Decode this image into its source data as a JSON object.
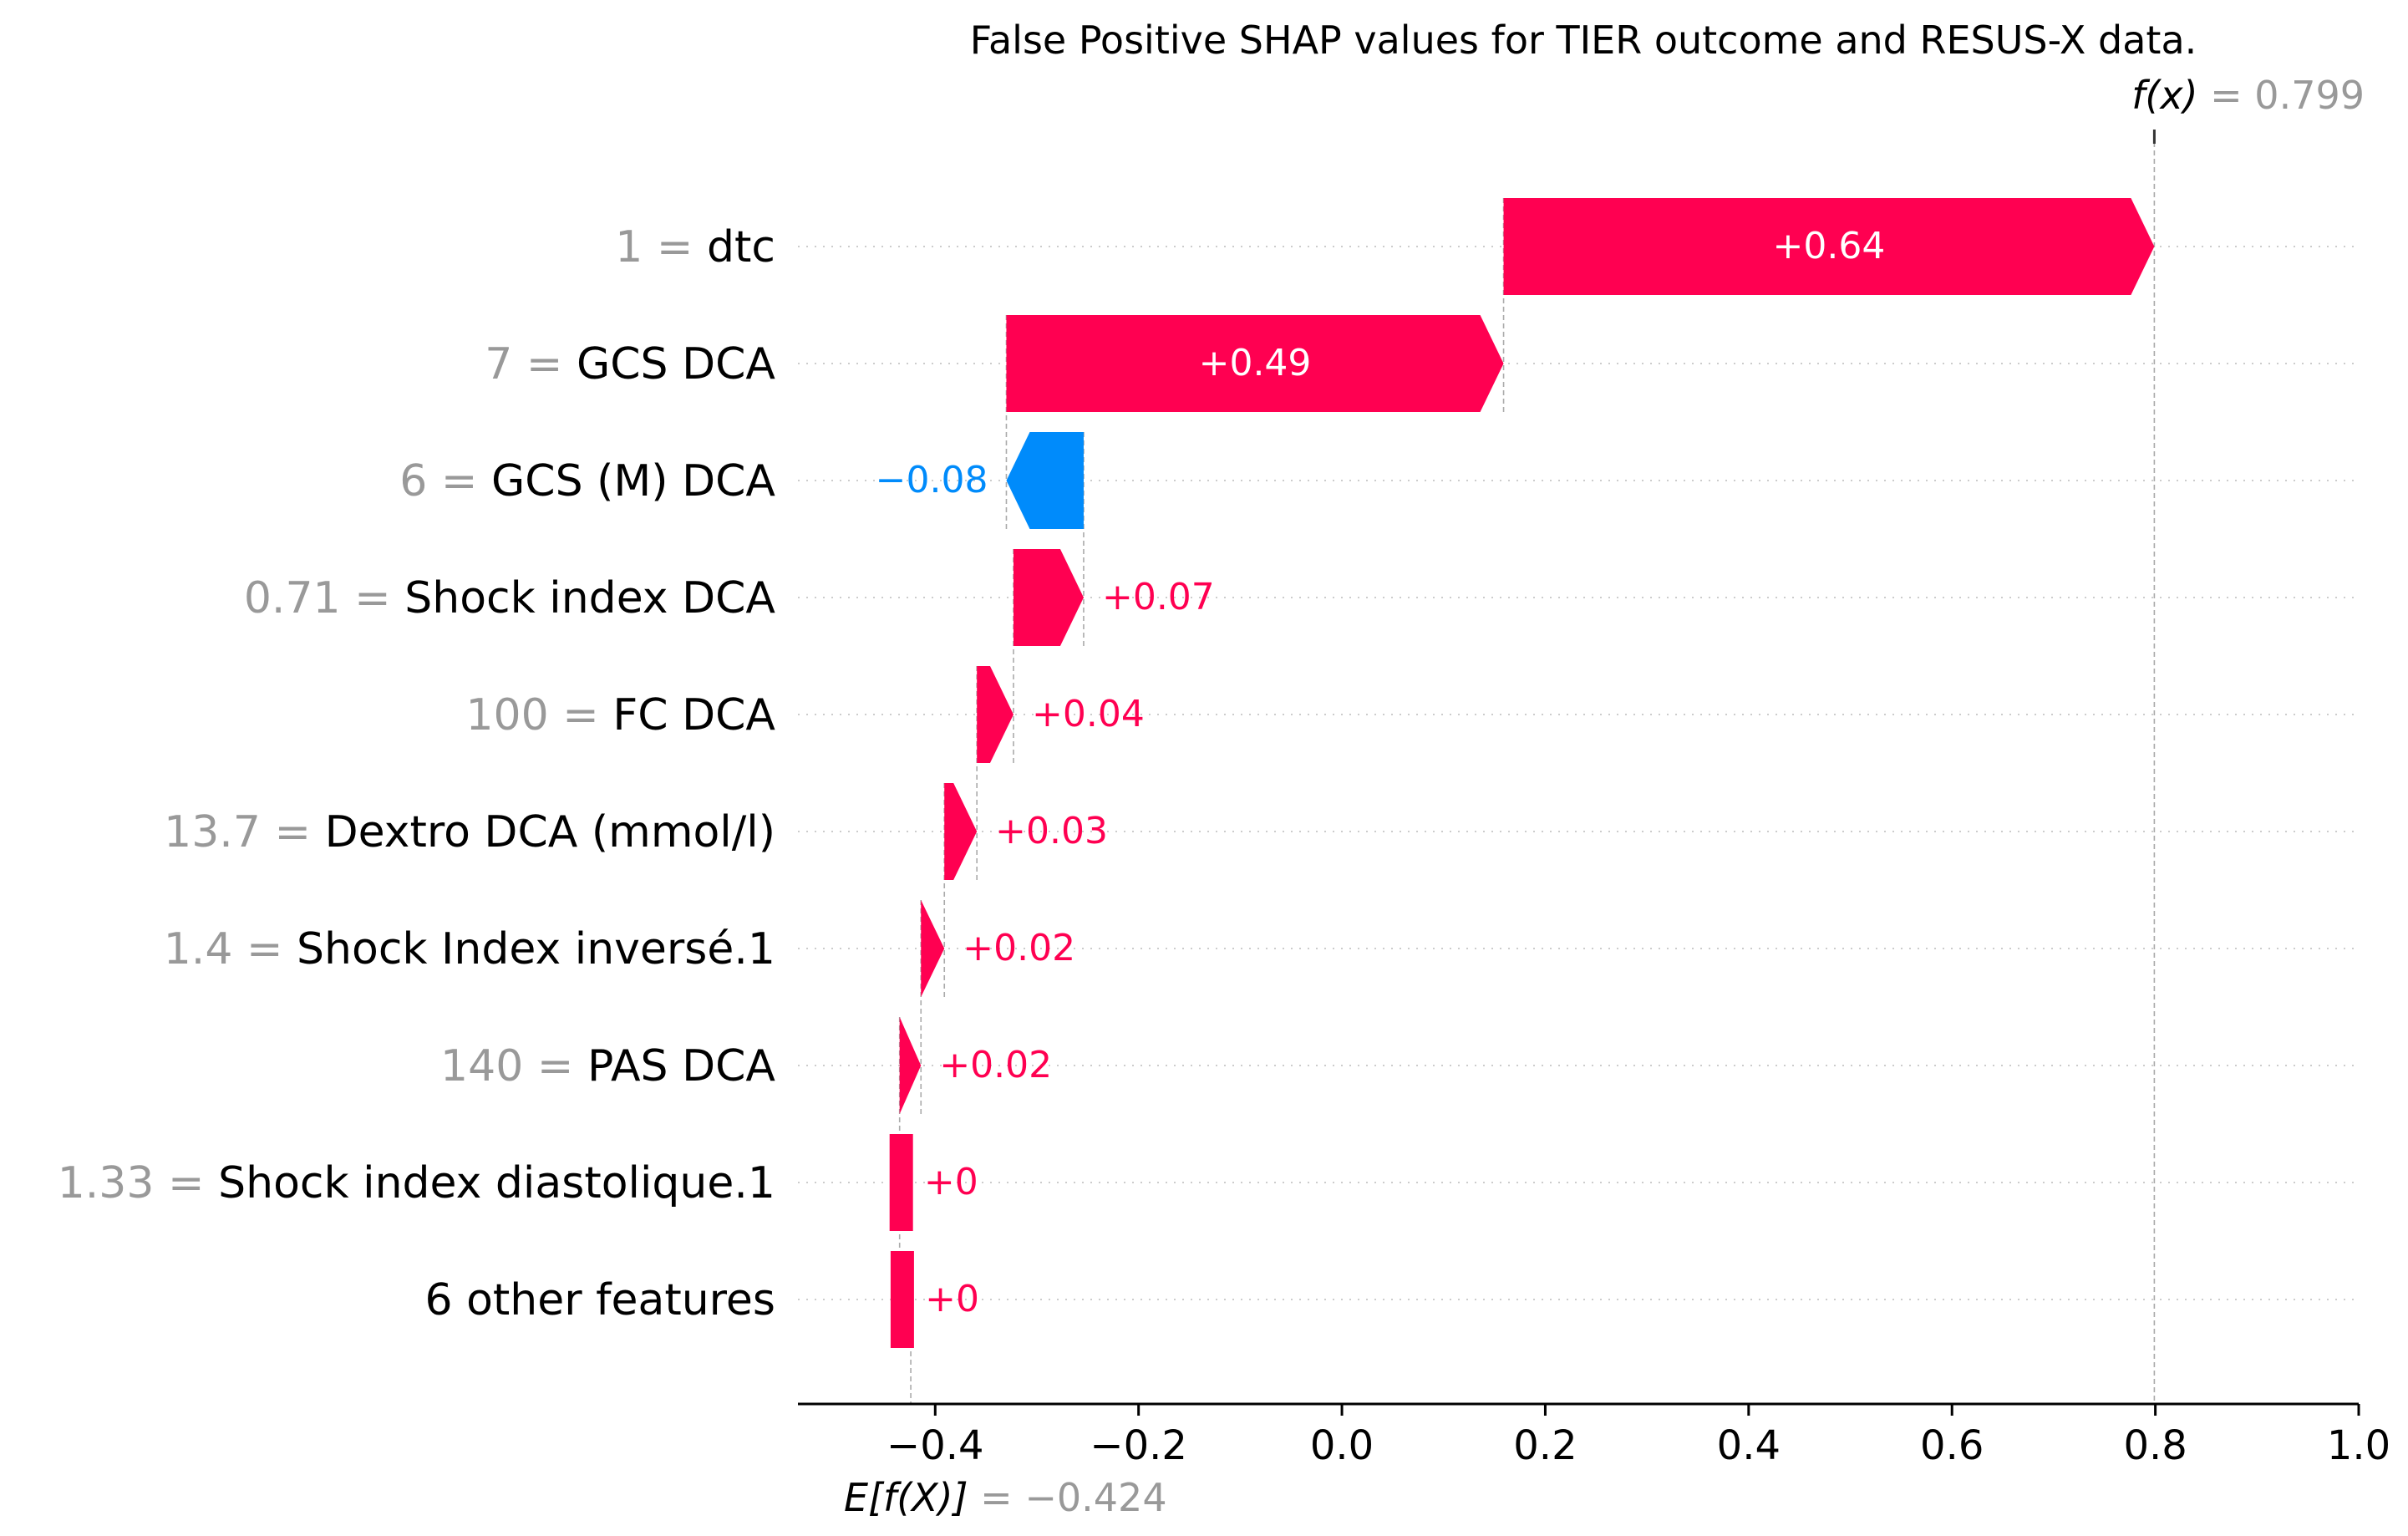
{
  "chart_data": {
    "type": "waterfall",
    "title": "False Positive SHAP values for TIER outcome and RESUS-X data.",
    "fx_label": "f(x)",
    "fx_value": "0.799",
    "fx": 0.799,
    "base_label": "E[f(X)]",
    "base_value": "−0.424",
    "base": -0.424,
    "xlim": [
      -0.535,
      1.0
    ],
    "x_ticks": [
      {
        "value": -0.4,
        "label": "−0.4"
      },
      {
        "value": -0.2,
        "label": "−0.2"
      },
      {
        "value": 0.0,
        "label": "0.0"
      },
      {
        "value": 0.2,
        "label": "0.2"
      },
      {
        "value": 0.4,
        "label": "0.4"
      },
      {
        "value": 0.6,
        "label": "0.6"
      },
      {
        "value": 0.8,
        "label": "0.8"
      },
      {
        "value": 1.0,
        "label": "1.0"
      }
    ],
    "features": [
      {
        "value_label": "1",
        "name": "dtc",
        "start": 0.159,
        "end": 0.799,
        "label": "+0.64",
        "sign": "pos",
        "label_inside": true
      },
      {
        "value_label": "7",
        "name": "GCS DCA",
        "start": -0.33,
        "end": 0.159,
        "label": "+0.49",
        "sign": "pos",
        "label_inside": true
      },
      {
        "value_label": "6",
        "name": "GCS (M) DCA",
        "start": -0.254,
        "end": -0.33,
        "label": "−0.08",
        "sign": "neg",
        "label_inside": false
      },
      {
        "value_label": "0.71",
        "name": "Shock index DCA",
        "start": -0.323,
        "end": -0.254,
        "label": "+0.07",
        "sign": "pos",
        "label_inside": false
      },
      {
        "value_label": "100",
        "name": "FC  DCA",
        "start": -0.359,
        "end": -0.323,
        "label": "+0.04",
        "sign": "pos",
        "label_inside": false
      },
      {
        "value_label": "13.7",
        "name": "Dextro DCA (mmol/l)",
        "start": -0.391,
        "end": -0.359,
        "label": "+0.03",
        "sign": "pos",
        "label_inside": false
      },
      {
        "value_label": "1.4",
        "name": "Shock Index inversé.1",
        "start": -0.414,
        "end": -0.391,
        "label": "+0.02",
        "sign": "pos",
        "label_inside": false
      },
      {
        "value_label": "140",
        "name": "PAS DCA",
        "start": -0.435,
        "end": -0.414,
        "label": "+0.02",
        "sign": "pos",
        "label_inside": false
      },
      {
        "value_label": "1.33",
        "name": "Shock index diastolique.1",
        "start": -0.435,
        "end": -0.434,
        "label": "+0",
        "sign": "pos",
        "label_inside": false
      },
      {
        "value_label": "",
        "name": "6 other features",
        "start": -0.434,
        "end": -0.433,
        "label": "+0",
        "sign": "pos",
        "label_inside": false
      }
    ],
    "colors": {
      "positive": "#ff0051",
      "negative": "#008bfb",
      "value_label": "#999999",
      "text": "#000000"
    }
  }
}
